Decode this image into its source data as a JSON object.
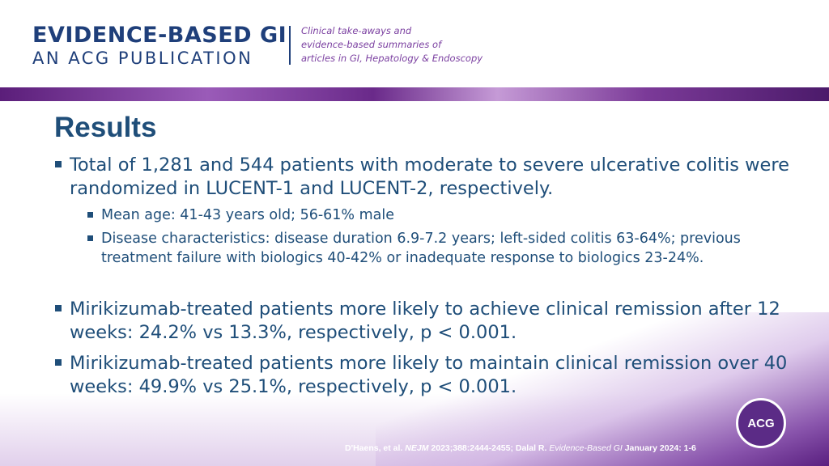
{
  "header": {
    "brand_main": "EVIDENCE-BASED GI",
    "brand_sub": "AN ACG PUBLICATION",
    "tagline": [
      "Clinical take-aways and",
      "evidence-based summaries of",
      "articles in GI, Hepatology & Endoscopy"
    ]
  },
  "slide": {
    "title": "Results",
    "bullets": [
      "Total of 1,281 and 544 patients with moderate to severe ulcerative colitis were randomized in LUCENT-1 and LUCENT-2, respectively.",
      "Mean age: 41-43 years old; 56-61% male",
      "Disease characteristics: disease duration 6.9-7.2 years; left-sided colitis 63-64%; previous treatment failure with biologics 40-42% or inadequate response to biologics 23-24%.",
      "Mirikizumab-treated patients more likely to achieve clinical remission after 12 weeks: 24.2% vs 13.3%, respectively, p < 0.001.",
      "Mirikizumab-treated patients more likely to maintain clinical remission over 40 weeks: 49.9% vs 25.1%, respectively, p < 0.001."
    ]
  },
  "footer": {
    "part1": "D'Haens, et al. ",
    "journal": "NEJM",
    "part2": " 2023;388:2444-2455; Dalal R. ",
    "journal2": "Evidence-Based GI",
    "part3": " January 2024: 1-6"
  },
  "logo": {
    "text": "ACG"
  },
  "colors": {
    "title": "#1f4e79",
    "brand": "#1f3f7a",
    "tagline": "#7a3fa0",
    "accent_purple": "#5b2b86"
  }
}
